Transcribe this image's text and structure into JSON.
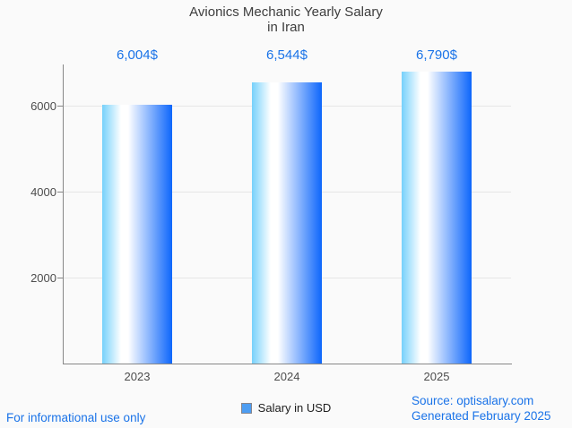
{
  "title": {
    "line1": "Avionics Mechanic Yearly Salary",
    "line2": "in Iran"
  },
  "chart_data": {
    "type": "bar",
    "title": "Avionics Mechanic Yearly Salary in Iran",
    "categories": [
      "2023",
      "2024",
      "2025"
    ],
    "values": [
      6004,
      6544,
      6790
    ],
    "value_labels": [
      "6,004$",
      "6,544$",
      "6,790$"
    ],
    "series": [
      {
        "name": "Salary in USD",
        "values": [
          6004,
          6544,
          6790
        ]
      }
    ],
    "xlabel": "",
    "ylabel": "",
    "yticks": [
      2000,
      4000,
      6000
    ],
    "ylim": [
      0,
      6950
    ],
    "grid": true,
    "legend_position": "bottom",
    "bar_gradient": [
      "#76d1fb",
      "#ffffff",
      "#0d66fb"
    ]
  },
  "legend": {
    "label": "Salary in USD",
    "swatch_color": "#4d9df2"
  },
  "footer": {
    "left": "For informational use only",
    "source": "Source: optisalary.com",
    "generated": "Generated February 2025"
  },
  "colors": {
    "accent_blue": "#1a73e8",
    "title_text": "#3d3d3d",
    "axis_line": "#878787",
    "gridline": "#e6e6e6",
    "background": "#fafafa"
  }
}
